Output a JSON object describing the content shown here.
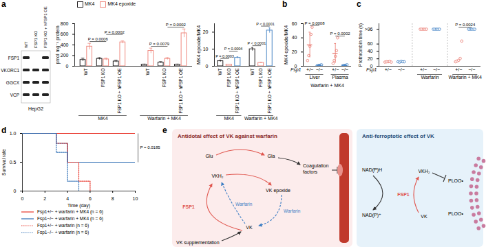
{
  "panel_labels": [
    "a",
    "b",
    "c",
    "d",
    "e"
  ],
  "blot": {
    "lanes": [
      "WT",
      "FSP1 KO",
      "FSP1 KO + hFSP1 OE"
    ],
    "rows": [
      "FSP1",
      "VKORC1",
      "GGCX",
      "VCP"
    ],
    "present": [
      [
        true,
        false,
        true
      ],
      [
        true,
        true,
        true
      ],
      [
        true,
        true,
        true
      ],
      [
        true,
        true,
        true
      ]
    ],
    "cell_line": "HepG2"
  },
  "chart_data": [
    {
      "type": "bar",
      "ylabel": "pmol mg⁻¹ protein",
      "categories": [
        "WT",
        "FSP1 KO",
        "FSP1 KO + hFSP1 OE",
        "WT",
        "FSP1 KO",
        "FSP1 KO + hFSP1 OE"
      ],
      "group_of": [
        "MK4",
        "MK4",
        "MK4",
        "Warfarin + MK4",
        "Warfarin + MK4",
        "Warfarin + MK4"
      ],
      "series": [
        {
          "name": "MK4",
          "color": "#231f20",
          "values": [
            120,
            140,
            90,
            30,
            70,
            30
          ],
          "error": [
            30,
            20,
            20,
            10,
            15,
            10
          ]
        },
        {
          "name": "MK4 epoxide",
          "color": "#ef8a80",
          "values": [
            370,
            130,
            450,
            290,
            140,
            620
          ],
          "error": [
            60,
            20,
            25,
            50,
            20,
            80
          ]
        }
      ],
      "ylim": [
        0,
        800
      ],
      "yticks": [
        0,
        200,
        400,
        600,
        800
      ],
      "legend": "top",
      "annotations": [
        {
          "text": "P = 0.0006",
          "group": "MK4",
          "series": "MK4 epoxide",
          "between": [
            "WT",
            "FSP1 KO"
          ]
        },
        {
          "text": "P = 0.0002",
          "group": "MK4",
          "series": "MK4 epoxide",
          "between": [
            "FSP1 KO",
            "FSP1 KO + hFSP1 OE"
          ]
        },
        {
          "text": "P = 0.0079",
          "group": "Warfarin + MK4",
          "series": "MK4 epoxide",
          "between": [
            "WT",
            "FSP1 KO"
          ]
        },
        {
          "text": "P = 0.0002",
          "group": "Warfarin + MK4",
          "series": "MK4 epoxide",
          "between": [
            "FSP1 KO",
            "FSP1 KO + hFSP1 OE"
          ]
        }
      ]
    },
    {
      "type": "bar",
      "ylabel": "MK4 epoxide/MK4",
      "categories": [
        "WT",
        "FSP1 KO",
        "FSP1 KO + hFSP1 OE",
        "WT",
        "FSP1 KO",
        "FSP1 KO + hFSP1 OE"
      ],
      "group_of": [
        "MK4",
        "MK4",
        "MK4",
        "Warfarin + MK4",
        "Warfarin + MK4",
        "Warfarin + MK4"
      ],
      "values": [
        3,
        1,
        5,
        10,
        2,
        21
      ],
      "error": [
        0.5,
        0.2,
        0.5,
        1,
        0.3,
        1.5
      ],
      "colors": [
        "#231f20",
        "#ef8a80",
        "#4a86c5",
        "#231f20",
        "#ef8a80",
        "#4a86c5"
      ],
      "ylim": [
        0,
        25
      ],
      "yticks": [
        0,
        10,
        20
      ],
      "annotations": [
        {
          "text": "P = 0.0003",
          "group": "MK4",
          "between": [
            "WT",
            "FSP1 KO"
          ]
        },
        {
          "text": "P = 0.0004",
          "group": "MK4",
          "between": [
            "FSP1 KO",
            "FSP1 KO + hFSP1 OE"
          ]
        },
        {
          "text": "P < 0.0001",
          "group": "Warfarin + MK4",
          "between": [
            "WT",
            "FSP1 KO"
          ]
        },
        {
          "text": "P < 0.0001",
          "group": "Warfarin + MK4",
          "between": [
            "FSP1 KO",
            "FSP1 KO + hFSP1 OE"
          ]
        }
      ]
    },
    {
      "type": "scatter",
      "ylabel": "MK4 epoxide/MK4",
      "xlabel": "Fsp1",
      "categories": [
        "+/−",
        "−/−",
        "+/−",
        "−/−"
      ],
      "group_of": [
        "Liver",
        "Liver",
        "Plasma",
        "Plasma"
      ],
      "caption": "Warfarin + MK4",
      "values": [
        30,
        1.2,
        18,
        1.2
      ],
      "error": [
        18,
        0.6,
        14,
        0.6
      ],
      "points": [
        [
          8,
          15,
          28,
          45,
          55
        ],
        [
          0.5,
          1,
          1,
          1.5,
          2
        ],
        [
          4,
          8,
          14,
          22,
          40
        ],
        [
          0.5,
          1,
          1,
          1.5,
          2
        ]
      ],
      "colors": [
        "#e8736a",
        "#3b7dc4",
        "#e8736a",
        "#3b7dc4"
      ],
      "ylim": [
        0,
        60
      ],
      "yticks": [
        0,
        20,
        40,
        60
      ],
      "annotations": [
        {
          "text": "P = 0.0008",
          "group": "Liver",
          "between": [
            "+/−",
            "−/−"
          ]
        },
        {
          "text": "P = 0.0002",
          "group": "Plasma",
          "between": [
            "+/−",
            "−/−"
          ]
        }
      ]
    },
    {
      "type": "scatter",
      "ylabel": "Prothrombin time (s)",
      "xlabel": "Fsp1",
      "categories": [
        "+/−",
        "−/−",
        "+/−",
        "−/−",
        "+/−",
        "−/−"
      ],
      "group_of": [
        null,
        null,
        "Warfarin",
        "Warfarin",
        "Warfarin + MK4",
        "Warfarin + MK4"
      ],
      "points": [
        [
          11,
          12,
          12,
          13,
          11
        ],
        [
          12,
          11,
          13,
          12,
          12
        ],
        [
          100,
          100,
          100,
          100,
          100
        ],
        [
          100,
          100,
          100,
          100,
          100
        ],
        [
          12,
          14,
          16,
          21,
          68
        ],
        [
          100,
          100,
          100,
          100,
          100
        ]
      ],
      "colors": [
        "#e8736a",
        "#3b7dc4",
        "#e8736a",
        "#3b7dc4",
        "#e8736a",
        "#3b7dc4"
      ],
      "ylim": [
        0,
        115
      ],
      "yticks": [
        0,
        20,
        40,
        60,
        {
          "value": 100,
          "label": ">96"
        }
      ],
      "annotations": [
        {
          "text": "P = 0.0024",
          "group": "Warfarin + MK4",
          "between": [
            "+/−",
            "−/−"
          ]
        }
      ]
    },
    {
      "type": "line",
      "xlabel": "Time (day)",
      "ylabel": "Survival rate",
      "xlim": [
        0,
        10
      ],
      "xticks": [
        0,
        2,
        4,
        6,
        8,
        10
      ],
      "ylim": [
        0,
        1
      ],
      "yticks": [
        0,
        0.5,
        {
          "value": 1,
          "label": "1.0"
        }
      ],
      "legend": "bottom",
      "series": [
        {
          "name": "Fsp1+/− + warfarin + MK4 (n = 6)",
          "color": "#e8362b",
          "line_style": "solid",
          "x": [
            0,
            10
          ],
          "values": [
            1,
            1
          ]
        },
        {
          "name": "Fsp1−/− + warfarin + MK4 (n = 6)",
          "color": "#2f6fb5",
          "line_style": "solid",
          "x": [
            0,
            3,
            4,
            10
          ],
          "values": [
            1,
            0.83,
            0.5,
            0.5
          ]
        },
        {
          "name": "Fsp1+/− + warfarin (n = 6)",
          "color": "#e8362b",
          "line_style": "dotted",
          "x": [
            0,
            3,
            4,
            5,
            6
          ],
          "values": [
            1,
            0.83,
            0.5,
            0.17,
            0
          ]
        },
        {
          "name": "Fsp1−/− + warfarin (n = 6)",
          "color": "#2f6fb5",
          "line_style": "dotted",
          "x": [
            0,
            3,
            4,
            5
          ],
          "values": [
            1,
            0.67,
            0.17,
            0
          ]
        }
      ],
      "annotations": [
        {
          "text": "P = 0.0185",
          "between": [
            "Fsp1+/− + warfarin + MK4 (n = 6)",
            "Fsp1−/− + warfarin + MK4 (n = 6)"
          ]
        }
      ]
    }
  ],
  "diagram": {
    "left": {
      "title": "Antidotal effect of VK against warfarin",
      "glu": "Glu",
      "gla": "Gla",
      "vkh2": "VKH₂",
      "epoxide": "VK epoxide",
      "vk": "VK",
      "fsp1": "FSP1",
      "warfarin": "Warfarin",
      "supplement": "VK supplementation",
      "coag": "Coagulation factors"
    },
    "right": {
      "title": "Anti-ferroptotic effect of VK",
      "nadph": "NAD(P)H",
      "nadp": "NAD(P)⁺",
      "vkh2": "VKH₂",
      "vk": "VK",
      "fsp1": "FSP1",
      "ploo": "PLOO•"
    }
  }
}
